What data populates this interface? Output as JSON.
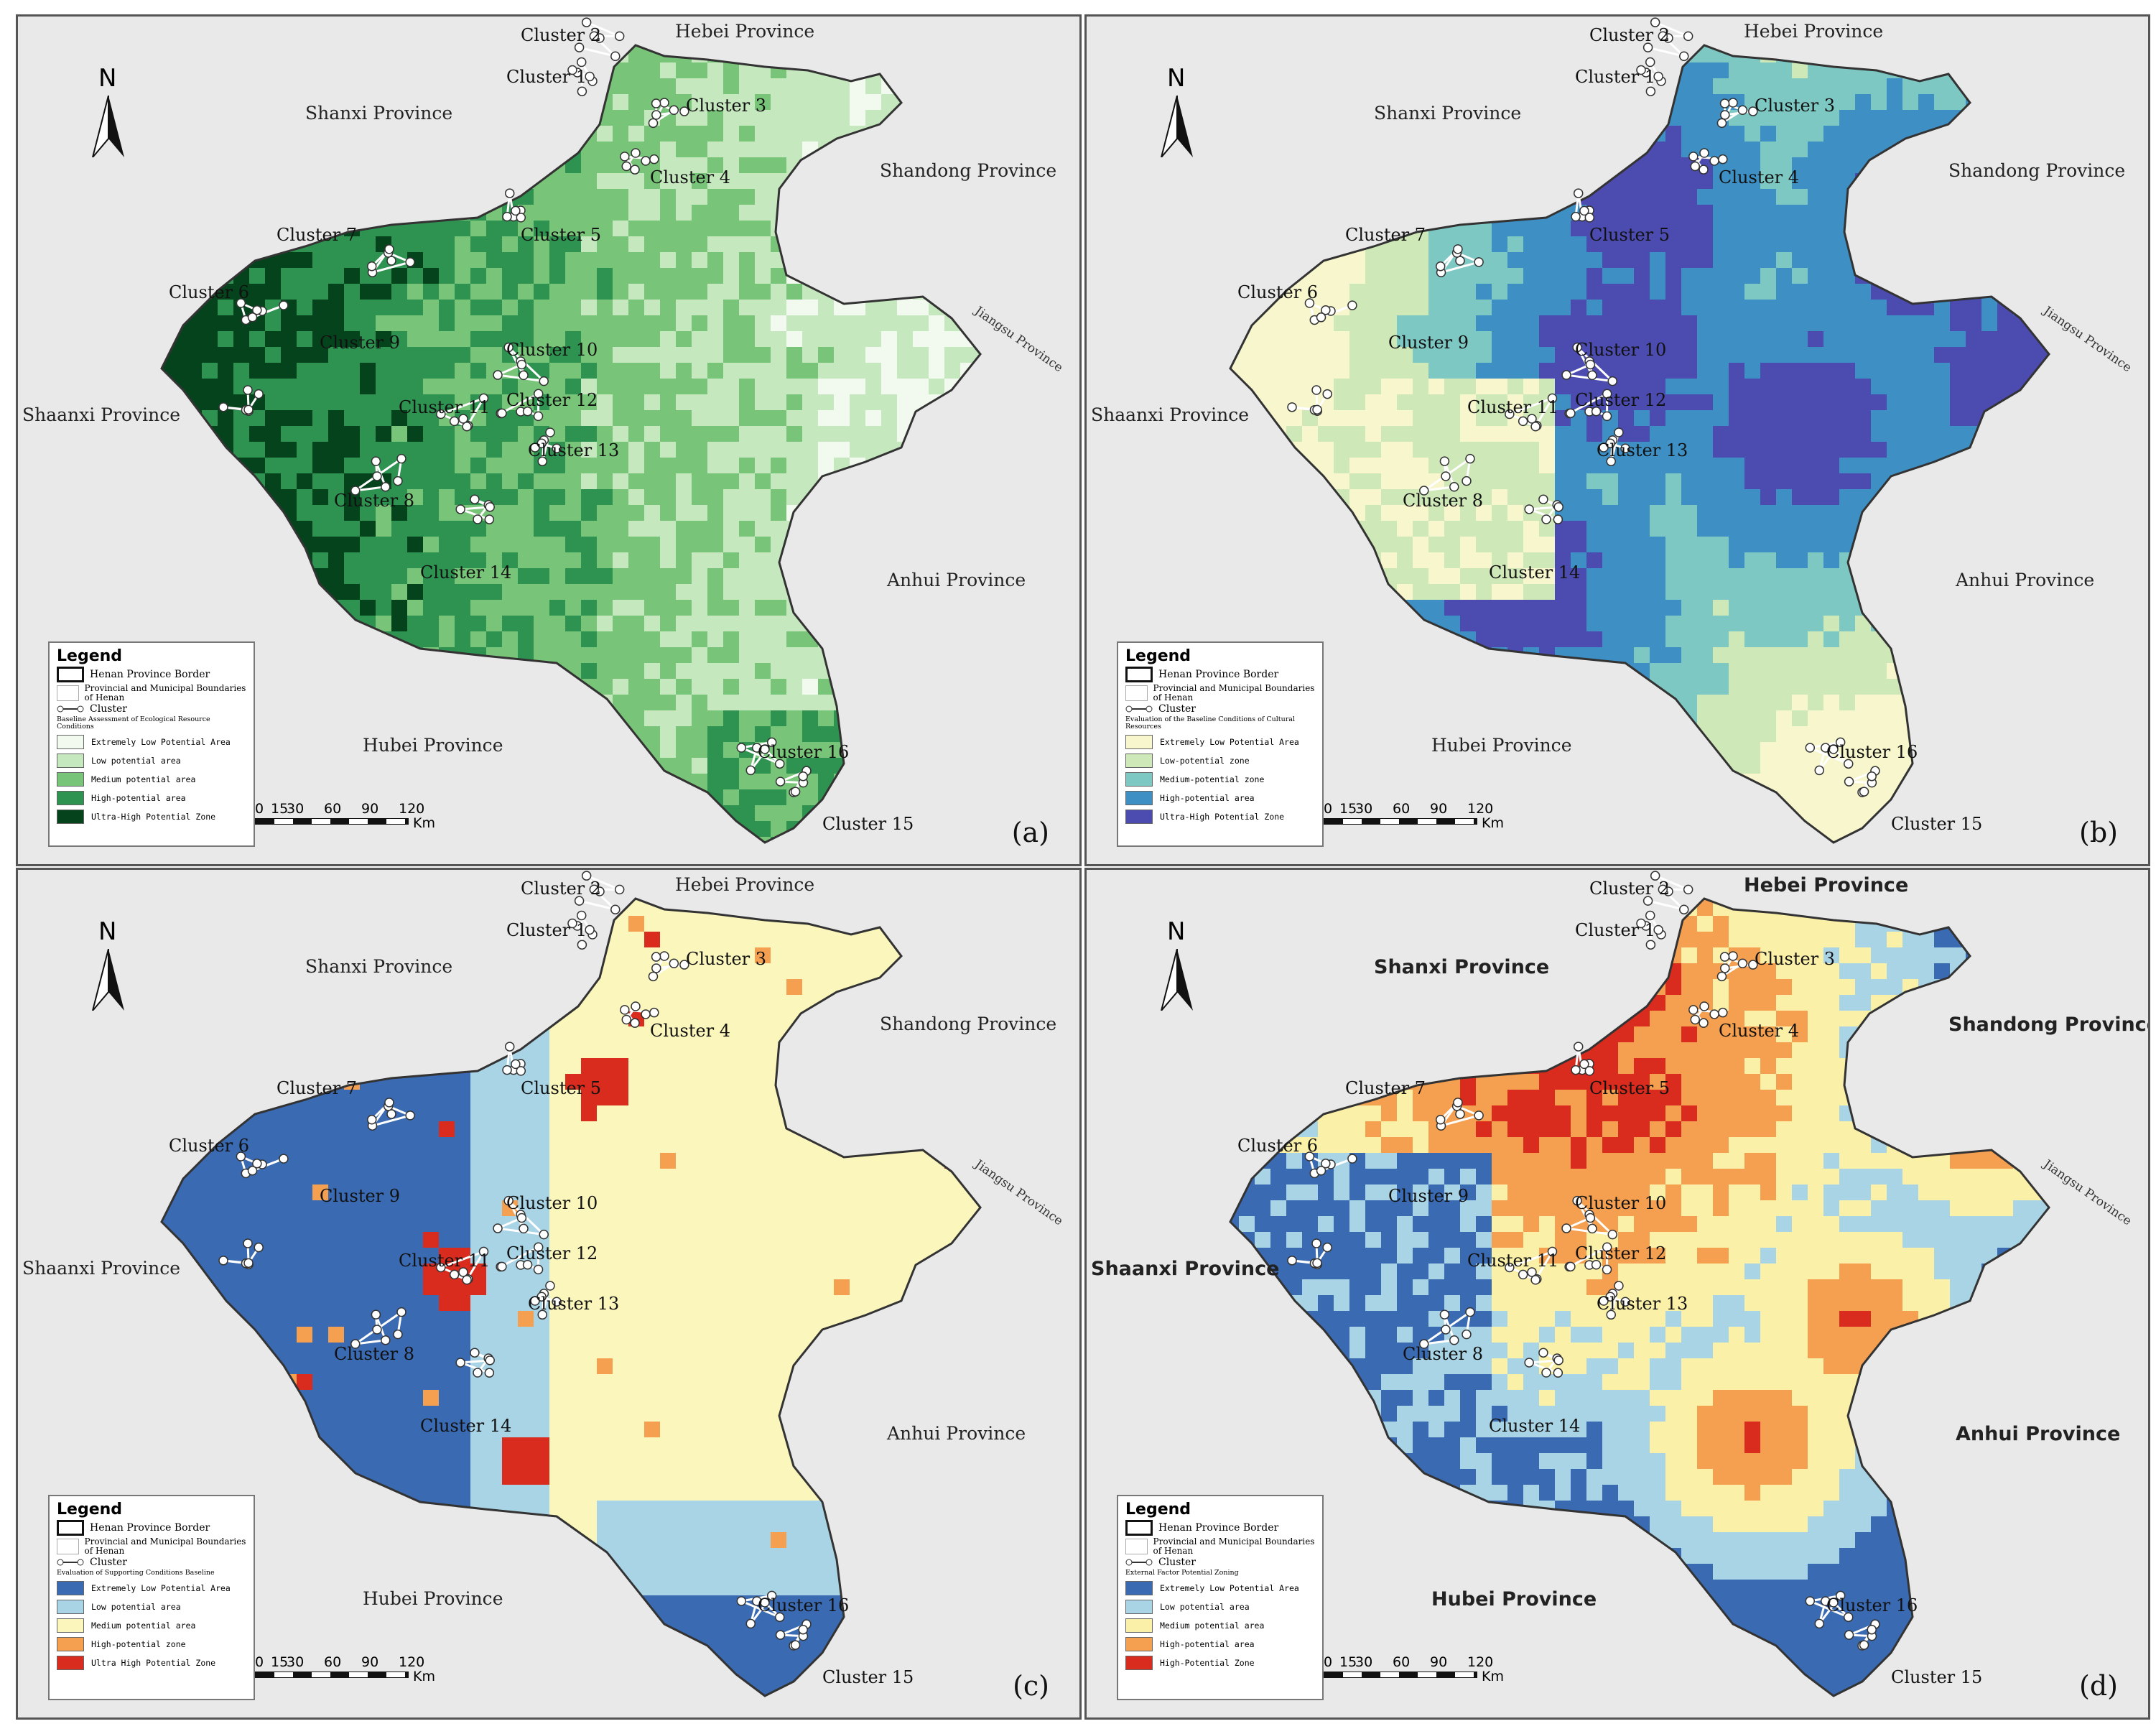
{
  "panels": [
    {
      "letter": "(a)",
      "bold_provinces": false,
      "provinces": {
        "hebei": "Hebei Province",
        "shanxi": "Shanxi Province",
        "shandong": "Shandong Province",
        "jiangsu": "Jiangsu Province",
        "shaanxi": "Shaanxi Province",
        "anhui": "Anhui Province",
        "hubei": "Hubei Province"
      },
      "legend": {
        "title": "Legend",
        "border": "Henan Province Border",
        "boundaries": "Provincial and Municipal Boundaries of Henan",
        "cluster": "Cluster",
        "subtitle": "Baseline Assessment of Ecological Resource Conditions",
        "classes": [
          {
            "label": "Extremely Low Potential Area",
            "color": "#f2f9ee"
          },
          {
            "label": "Low potential area",
            "color": "#c6e8be"
          },
          {
            "label": "Medium potential area",
            "color": "#78c478"
          },
          {
            "label": "High-potential area",
            "color": "#2e9350"
          },
          {
            "label": "Ultra-High Potential Zone",
            "color": "#05431c"
          }
        ]
      }
    },
    {
      "letter": "(b)",
      "bold_provinces": false,
      "provinces": {
        "hebei": "Hebei Province",
        "shanxi": "Shanxi Province",
        "shandong": "Shandong Province",
        "jiangsu": "Jiangsu Province",
        "shaanxi": "Shaanxi Province",
        "anhui": "Anhui Province",
        "hubei": "Hubei Province"
      },
      "legend": {
        "title": "Legend",
        "border": "Henan Province Border",
        "boundaries": "Provincial and Municipal Boundaries of Henan",
        "cluster": "Cluster",
        "subtitle": "Evaluation of the Baseline Conditions of Cultural Resources",
        "classes": [
          {
            "label": "Extremely Low Potential Area",
            "color": "#f8f6cc"
          },
          {
            "label": "Low-potential zone",
            "color": "#cfe8b8"
          },
          {
            "label": "Medium-potential zone",
            "color": "#7ec8c4"
          },
          {
            "label": "High-potential area",
            "color": "#3d8fc4"
          },
          {
            "label": "Ultra-High Potential Zone",
            "color": "#4b4bb0"
          }
        ]
      }
    },
    {
      "letter": "(c)",
      "bold_provinces": false,
      "provinces": {
        "hebei": "Hebei Province",
        "shanxi": "Shanxi Province",
        "shandong": "Shandong Province",
        "jiangsu": "Jiangsu Province",
        "shaanxi": "Shaanxi Province",
        "anhui": "Anhui Province",
        "hubei": "Hubei Province"
      },
      "legend": {
        "title": "Legend",
        "border": "Henan Province Border",
        "boundaries": "Provincial and Municipal Boundaries of Henan",
        "cluster": "Cluster",
        "subtitle": "Evaluation of Supporting Conditions Baseline",
        "classes": [
          {
            "label": "Extremely Low Potential Area",
            "color": "#3a6ab2"
          },
          {
            "label": "Low potential area",
            "color": "#a9d4e6"
          },
          {
            "label": "Medium potential area",
            "color": "#fbf6bb"
          },
          {
            "label": "High-potential zone",
            "color": "#f4a050"
          },
          {
            "label": "Ultra High Potential Zone",
            "color": "#d92b1e"
          }
        ]
      }
    },
    {
      "letter": "(d)",
      "bold_provinces": true,
      "provinces": {
        "hebei": "Hebei Province",
        "shanxi": "Shanxi Province",
        "shandong": "Shandong Province",
        "jiangsu": "Jiangsu Province",
        "shaanxi": "Shaanxi Province",
        "anhui": "Anhui Province",
        "hubei": "Hubei Province"
      },
      "legend": {
        "title": "Legend",
        "border": "Henan Province Border",
        "boundaries": "Provincial and Municipal Boundaries of Henan",
        "cluster": "Cluster",
        "subtitle": "External Factor Potential Zoning",
        "classes": [
          {
            "label": "Extremely Low Potential Area",
            "color": "#3a6ab2"
          },
          {
            "label": "Low potential area",
            "color": "#a9d4e6"
          },
          {
            "label": "Medium potential area",
            "color": "#fbf0a8"
          },
          {
            "label": "High-potential area",
            "color": "#f4a050"
          },
          {
            "label": "High-Potential Zone",
            "color": "#d92b1e"
          }
        ]
      }
    }
  ],
  "clusters": [
    "Cluster 1",
    "Cluster 2",
    "Cluster 3",
    "Cluster 4",
    "Cluster 5",
    "Cluster 6",
    "Cluster 7",
    "Cluster 8",
    "Cluster 9",
    "Cluster 10",
    "Cluster 11",
    "Cluster 12",
    "Cluster 13",
    "Cluster 14",
    "Cluster 15",
    "Cluster 16"
  ],
  "north_label": "N",
  "scale": {
    "ticks": [
      "0",
      "15",
      "30",
      "60",
      "90",
      "120"
    ],
    "unit": "Km"
  }
}
